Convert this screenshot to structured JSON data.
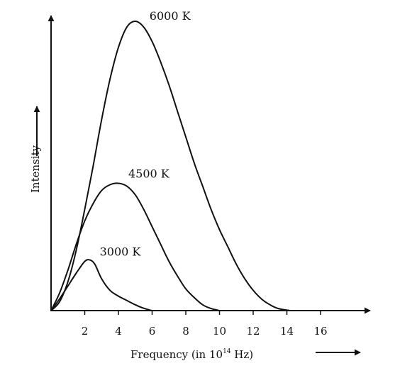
{
  "chart_data": {
    "type": "line",
    "title": "",
    "xlabel": "Frequency (in 10",
    "xlabel_exponent": "14",
    "xlabel_unit": " Hz)",
    "ylabel": "Intensity",
    "xlim": [
      0,
      18
    ],
    "ylim": [
      0,
      100
    ],
    "x_ticks": [
      2,
      4,
      6,
      8,
      10,
      12,
      14,
      16
    ],
    "y_ticks": [],
    "grid": false,
    "legend": "none",
    "series": [
      {
        "name": "6000 K",
        "x": [
          0,
          0.5,
          1,
          1.5,
          2,
          2.5,
          3,
          3.5,
          4,
          4.5,
          5,
          5.5,
          6,
          6.5,
          7,
          7.5,
          8,
          8.5,
          9,
          9.5,
          10,
          10.5,
          11,
          11.5,
          12,
          12.5,
          13,
          13.5,
          14.2
        ],
        "y": [
          0,
          3,
          10,
          21,
          35,
          50,
          66,
          80,
          91,
          98,
          100,
          98,
          93,
          86,
          78,
          69,
          60,
          51,
          43,
          35,
          28,
          22,
          16,
          11,
          7,
          4,
          2,
          0.7,
          0
        ]
      },
      {
        "name": "4500 K",
        "x": [
          0,
          0.5,
          1,
          1.5,
          2,
          2.5,
          3,
          3.5,
          4,
          4.5,
          5,
          5.5,
          6,
          6.5,
          7,
          7.5,
          8,
          8.5,
          9,
          9.5,
          10
        ],
        "y": [
          0,
          6,
          14,
          23,
          31,
          37,
          41.5,
          43.5,
          44,
          43,
          40,
          35,
          29,
          23,
          17,
          12,
          7.5,
          4.5,
          2,
          0.7,
          0
        ]
      },
      {
        "name": "3000 K",
        "x": [
          0,
          0.5,
          1,
          1.5,
          2,
          2.3,
          2.6,
          3,
          3.5,
          4,
          4.5,
          5,
          5.5,
          6
        ],
        "y": [
          0,
          4,
          8.5,
          13,
          17,
          17.5,
          16,
          11,
          7,
          5,
          3.5,
          2,
          0.8,
          0
        ]
      }
    ]
  }
}
